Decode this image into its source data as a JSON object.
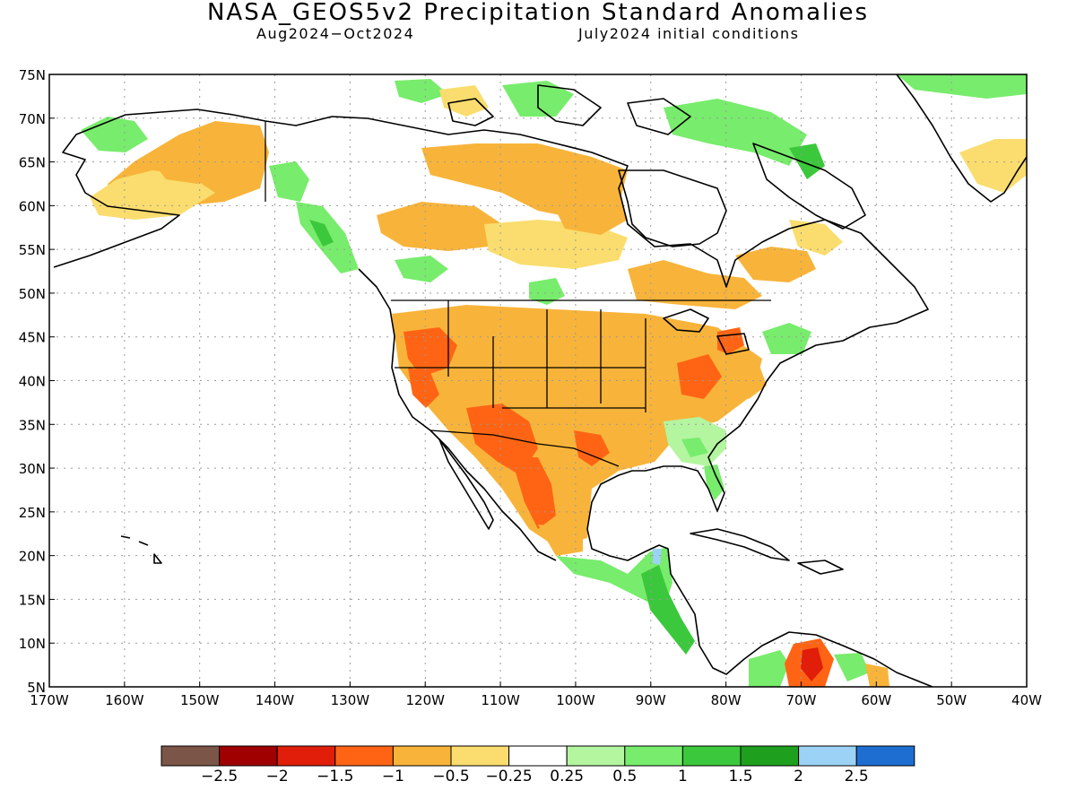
{
  "header": {
    "title": "NASA_GEOS5v2 Precipitation Standard Anomalies",
    "period": "Aug2024−Oct2024",
    "init": "July2024 initial conditions"
  },
  "axes": {
    "lat_labels": [
      "75N",
      "70N",
      "65N",
      "60N",
      "55N",
      "50N",
      "45N",
      "40N",
      "35N",
      "30N",
      "25N",
      "20N",
      "15N",
      "10N",
      "5N"
    ],
    "lon_labels": [
      "170W",
      "160W",
      "150W",
      "140W",
      "130W",
      "120W",
      "110W",
      "100W",
      "90W",
      "80W",
      "70W",
      "60W",
      "50W",
      "40W"
    ],
    "lat_range": [
      5,
      75
    ],
    "lon_range": [
      -170,
      -40
    ],
    "grid": "dotted"
  },
  "colorbar": {
    "colors": [
      "#7b5547",
      "#a00000",
      "#e01e0a",
      "#ff6414",
      "#f8b43a",
      "#fadd6e",
      "#ffffff",
      "#b4f5a0",
      "#78ec6c",
      "#3cc83c",
      "#1ea01e",
      "#9cd2f5",
      "#1e6ed2"
    ],
    "labels": [
      "−2.5",
      "−2",
      "−1.5",
      "−1",
      "−0.5",
      "−0.25",
      "0.25",
      "0.5",
      "1",
      "1.5",
      "2",
      "2.5"
    ]
  },
  "anomaly_colors": {
    "dry_light": "#fadd6e",
    "dry_moderate": "#f8b43a",
    "dry_strong": "#ff6414",
    "dry_severe": "#e01e0a",
    "dry_extreme": "#a00000",
    "wet_light": "#b4f5a0",
    "wet_moderate": "#78ec6c",
    "wet_strong": "#3cc83c",
    "wet_severe": "#1ea01e",
    "wet_extreme": "#9cd2f5"
  }
}
